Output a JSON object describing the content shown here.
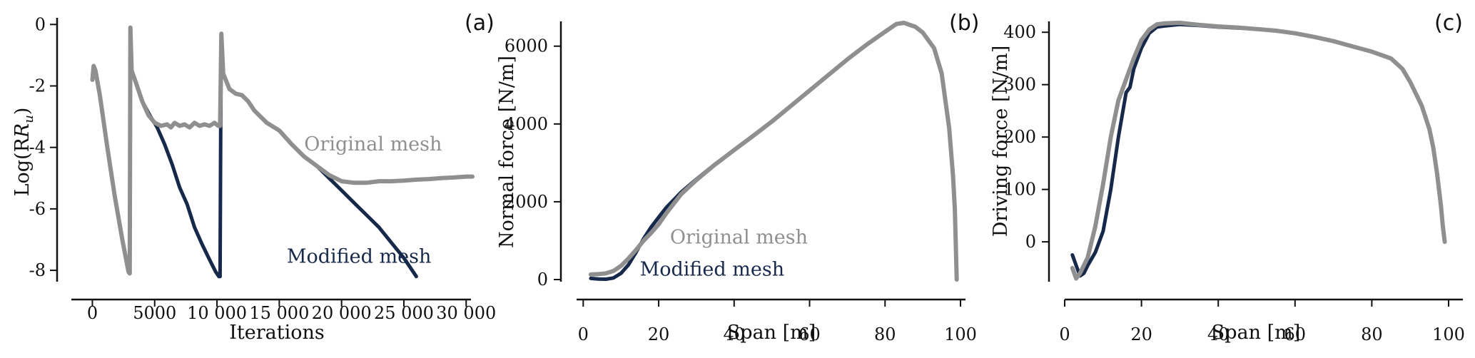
{
  "colors": {
    "original": "#8f8f8f",
    "modified": "#17294a",
    "axis": "#111111"
  },
  "chart_data": [
    {
      "id": "a",
      "panel_label": "(a)",
      "type": "line",
      "xlabel": "Iterations",
      "ylabel": "Log(R",
      "ylabel_sub": "u",
      "ylabel_close": ")",
      "xlim": [
        -1000,
        30500
      ],
      "ylim": [
        -8.3,
        0.1
      ],
      "xticks": [
        0,
        5000,
        10000,
        15000,
        20000,
        25000,
        30000
      ],
      "xtick_labels": [
        "0",
        "5000",
        "10 000",
        "15 000",
        "20 000",
        "25 000",
        "30 000"
      ],
      "yticks": [
        0,
        -2,
        -4,
        -6,
        -8
      ],
      "ytick_labels": [
        "0",
        "-2",
        "-4",
        "-6",
        "-8"
      ],
      "annotations": [
        {
          "text": "Original mesh",
          "x": 17000,
          "y": -4.1,
          "color_key": "original"
        },
        {
          "text": "Modified mesh",
          "x": 15600,
          "y": -7.75,
          "color_key": "modified"
        }
      ],
      "series": [
        {
          "name": "Modified mesh",
          "color_key": "modified",
          "width": 5,
          "points": [
            [
              0,
              -1.8
            ],
            [
              100,
              -1.35
            ],
            [
              250,
              -1.5
            ],
            [
              600,
              -2.3
            ],
            [
              1200,
              -4.0
            ],
            [
              1800,
              -5.6
            ],
            [
              2400,
              -7.0
            ],
            [
              2900,
              -8.05
            ],
            [
              3000,
              -8.1
            ],
            [
              3050,
              -0.1
            ],
            [
              3150,
              -1.5
            ],
            [
              3500,
              -1.9
            ],
            [
              4000,
              -2.5
            ],
            [
              4600,
              -2.95
            ],
            [
              5200,
              -3.35
            ],
            [
              5800,
              -3.9
            ],
            [
              6400,
              -4.55
            ],
            [
              7000,
              -5.3
            ],
            [
              7600,
              -5.85
            ],
            [
              8200,
              -6.6
            ],
            [
              8800,
              -7.15
            ],
            [
              9400,
              -7.65
            ],
            [
              9900,
              -8.05
            ],
            [
              10150,
              -8.2
            ],
            [
              10250,
              -8.2
            ],
            [
              10300,
              -3.4
            ],
            [
              10350,
              -0.3
            ],
            [
              10500,
              -1.6
            ],
            [
              11000,
              -2.1
            ],
            [
              11500,
              -2.25
            ],
            [
              12000,
              -2.3
            ],
            [
              12500,
              -2.5
            ],
            [
              13000,
              -2.8
            ],
            [
              14000,
              -3.2
            ],
            [
              15000,
              -3.45
            ],
            [
              16000,
              -3.9
            ],
            [
              17000,
              -4.3
            ],
            [
              18000,
              -4.6
            ],
            [
              19000,
              -5.0
            ],
            [
              20000,
              -5.4
            ],
            [
              21000,
              -5.8
            ],
            [
              22000,
              -6.2
            ],
            [
              23000,
              -6.6
            ],
            [
              24000,
              -7.1
            ],
            [
              25000,
              -7.6
            ],
            [
              26000,
              -8.2
            ]
          ]
        },
        {
          "name": "Original mesh",
          "color_key": "original",
          "width": 6,
          "points": [
            [
              0,
              -1.8
            ],
            [
              100,
              -1.35
            ],
            [
              250,
              -1.5
            ],
            [
              600,
              -2.3
            ],
            [
              1200,
              -4.0
            ],
            [
              1800,
              -5.6
            ],
            [
              2400,
              -7.0
            ],
            [
              2900,
              -8.05
            ],
            [
              3000,
              -8.1
            ],
            [
              3050,
              -0.1
            ],
            [
              3150,
              -1.5
            ],
            [
              3500,
              -1.9
            ],
            [
              4000,
              -2.5
            ],
            [
              4500,
              -2.95
            ],
            [
              5000,
              -3.2
            ],
            [
              5500,
              -3.3
            ],
            [
              6000,
              -3.25
            ],
            [
              6300,
              -3.35
            ],
            [
              6600,
              -3.2
            ],
            [
              7000,
              -3.3
            ],
            [
              7400,
              -3.25
            ],
            [
              7800,
              -3.35
            ],
            [
              8200,
              -3.2
            ],
            [
              8600,
              -3.3
            ],
            [
              9000,
              -3.25
            ],
            [
              9400,
              -3.3
            ],
            [
              9800,
              -3.2
            ],
            [
              10100,
              -3.3
            ],
            [
              10250,
              -3.3
            ],
            [
              10350,
              -0.3
            ],
            [
              10500,
              -1.6
            ],
            [
              11000,
              -2.1
            ],
            [
              11500,
              -2.25
            ],
            [
              12000,
              -2.3
            ],
            [
              12500,
              -2.5
            ],
            [
              13000,
              -2.8
            ],
            [
              14000,
              -3.2
            ],
            [
              15000,
              -3.45
            ],
            [
              16000,
              -3.9
            ],
            [
              17000,
              -4.3
            ],
            [
              18000,
              -4.6
            ],
            [
              19000,
              -4.9
            ],
            [
              20000,
              -5.1
            ],
            [
              21000,
              -5.15
            ],
            [
              22000,
              -5.15
            ],
            [
              23000,
              -5.1
            ],
            [
              24000,
              -5.1
            ],
            [
              25000,
              -5.08
            ],
            [
              26000,
              -5.05
            ],
            [
              27000,
              -5.03
            ],
            [
              28000,
              -5.0
            ],
            [
              29000,
              -4.98
            ],
            [
              30000,
              -4.95
            ],
            [
              30500,
              -4.95
            ]
          ]
        }
      ]
    },
    {
      "id": "b",
      "panel_label": "(b)",
      "type": "line",
      "xlabel": "Span [m]",
      "ylabel": "Normal force [N/m]",
      "xlim": [
        -1,
        100
      ],
      "ylim": [
        0,
        6600
      ],
      "xticks": [
        0,
        20,
        40,
        60,
        80,
        100
      ],
      "xtick_labels": [
        "0",
        "20",
        "40",
        "60",
        "80",
        "100"
      ],
      "yticks": [
        0,
        2000,
        4000,
        6000
      ],
      "ytick_labels": [
        "0",
        "2000",
        "4000",
        "6000"
      ],
      "annotations": [
        {
          "text": "Original mesh",
          "x": 23,
          "y": 930,
          "color_key": "original"
        },
        {
          "text": "Modified mesh",
          "x": 15,
          "y": 100,
          "color_key": "modified"
        }
      ],
      "series": [
        {
          "name": "Modified mesh",
          "color_key": "modified",
          "width": 5,
          "points": [
            [
              2,
              30
            ],
            [
              4,
              15
            ],
            [
              6,
              10
            ],
            [
              8,
              40
            ],
            [
              10,
              160
            ],
            [
              12,
              380
            ],
            [
              14,
              700
            ],
            [
              16,
              1050
            ],
            [
              18,
              1350
            ],
            [
              20,
              1600
            ],
            [
              22,
              1850
            ],
            [
              24,
              2050
            ],
            [
              26,
              2250
            ],
            [
              30,
              2580
            ],
            [
              35,
              2970
            ],
            [
              40,
              3330
            ],
            [
              45,
              3690
            ],
            [
              50,
              4060
            ],
            [
              55,
              4460
            ],
            [
              60,
              4860
            ],
            [
              65,
              5260
            ],
            [
              70,
              5660
            ],
            [
              75,
              6030
            ],
            [
              80,
              6370
            ],
            [
              83,
              6570
            ],
            [
              85,
              6600
            ],
            [
              88,
              6500
            ],
            [
              90,
              6350
            ],
            [
              93,
              5950
            ],
            [
              95,
              5300
            ],
            [
              97,
              3900
            ],
            [
              98,
              2700
            ],
            [
              98.5,
              1800
            ],
            [
              99,
              0
            ]
          ]
        },
        {
          "name": "Original mesh",
          "color_key": "original",
          "width": 6,
          "points": [
            [
              2,
              130
            ],
            [
              4,
              140
            ],
            [
              6,
              160
            ],
            [
              8,
              220
            ],
            [
              10,
              350
            ],
            [
              12,
              540
            ],
            [
              14,
              760
            ],
            [
              16,
              1000
            ],
            [
              18,
              1200
            ],
            [
              20,
              1420
            ],
            [
              22,
              1700
            ],
            [
              24,
              1950
            ],
            [
              26,
              2200
            ],
            [
              30,
              2560
            ],
            [
              35,
              2960
            ],
            [
              40,
              3330
            ],
            [
              45,
              3690
            ],
            [
              50,
              4060
            ],
            [
              55,
              4460
            ],
            [
              60,
              4860
            ],
            [
              65,
              5260
            ],
            [
              70,
              5660
            ],
            [
              75,
              6030
            ],
            [
              80,
              6370
            ],
            [
              83,
              6570
            ],
            [
              85,
              6600
            ],
            [
              88,
              6500
            ],
            [
              90,
              6350
            ],
            [
              93,
              5950
            ],
            [
              95,
              5300
            ],
            [
              97,
              3900
            ],
            [
              98,
              2700
            ],
            [
              98.5,
              1800
            ],
            [
              99,
              0
            ]
          ]
        }
      ]
    },
    {
      "id": "c",
      "panel_label": "(c)",
      "type": "line",
      "xlabel": "Span [m]",
      "ylabel": "Driving force [N/m]",
      "xlim": [
        0,
        100
      ],
      "ylim": [
        -72,
        418
      ],
      "xticks": [
        0,
        20,
        40,
        60,
        80,
        100
      ],
      "xtick_labels": [
        "0",
        "20",
        "40",
        "60",
        "80",
        "100"
      ],
      "yticks": [
        0,
        100,
        200,
        300,
        400
      ],
      "ytick_labels": [
        "0",
        "100",
        "200",
        "300",
        "400"
      ],
      "annotations": [],
      "series": [
        {
          "name": "Modified mesh",
          "color_key": "modified",
          "width": 5,
          "points": [
            [
              2,
              -25
            ],
            [
              3,
              -45
            ],
            [
              4,
              -65
            ],
            [
              5,
              -60
            ],
            [
              6,
              -45
            ],
            [
              8,
              -20
            ],
            [
              10,
              20
            ],
            [
              12,
              100
            ],
            [
              14,
              200
            ],
            [
              16,
              285
            ],
            [
              17,
              295
            ],
            [
              18,
              330
            ],
            [
              20,
              370
            ],
            [
              22,
              398
            ],
            [
              24,
              410
            ],
            [
              26,
              412
            ],
            [
              30,
              415
            ],
            [
              35,
              413
            ],
            [
              40,
              410
            ],
            [
              45,
              408
            ],
            [
              50,
              406
            ],
            [
              55,
              403
            ],
            [
              60,
              398
            ],
            [
              65,
              391
            ],
            [
              70,
              383
            ],
            [
              75,
              373
            ],
            [
              80,
              363
            ],
            [
              85,
              350
            ],
            [
              88,
              330
            ],
            [
              90,
              305
            ],
            [
              93,
              260
            ],
            [
              95,
              215
            ],
            [
              96,
              180
            ],
            [
              97,
              130
            ],
            [
              98,
              70
            ],
            [
              98.5,
              30
            ],
            [
              99,
              0
            ]
          ]
        },
        {
          "name": "Original mesh",
          "color_key": "original",
          "width": 6,
          "points": [
            [
              2,
              -50
            ],
            [
              3,
              -70
            ],
            [
              4,
              -60
            ],
            [
              6,
              -30
            ],
            [
              8,
              30
            ],
            [
              10,
              110
            ],
            [
              12,
              200
            ],
            [
              14,
              270
            ],
            [
              16,
              310
            ],
            [
              18,
              350
            ],
            [
              20,
              385
            ],
            [
              22,
              405
            ],
            [
              24,
              415
            ],
            [
              26,
              417
            ],
            [
              30,
              418
            ],
            [
              35,
              414
            ],
            [
              40,
              411
            ],
            [
              45,
              409
            ],
            [
              50,
              406
            ],
            [
              55,
              403
            ],
            [
              60,
              398
            ],
            [
              65,
              391
            ],
            [
              70,
              383
            ],
            [
              75,
              373
            ],
            [
              80,
              363
            ],
            [
              85,
              350
            ],
            [
              88,
              330
            ],
            [
              90,
              305
            ],
            [
              93,
              260
            ],
            [
              95,
              215
            ],
            [
              96,
              180
            ],
            [
              97,
              130
            ],
            [
              98,
              70
            ],
            [
              98.5,
              30
            ],
            [
              99,
              0
            ]
          ]
        }
      ]
    }
  ]
}
